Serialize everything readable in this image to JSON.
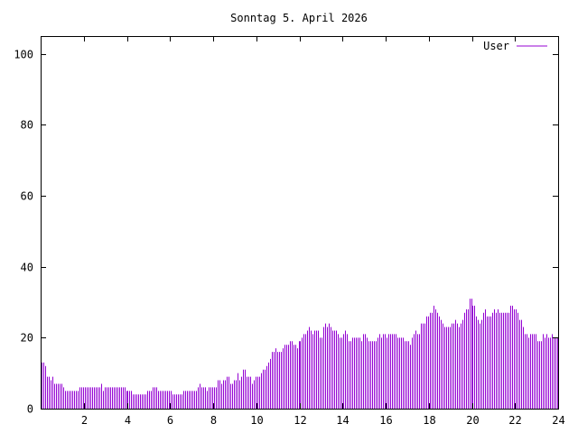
{
  "chart_data": {
    "type": "bar",
    "style": "impulses",
    "title": "Sonntag 5. April 2026",
    "xlabel": "",
    "ylabel": "",
    "xlim": [
      0,
      24
    ],
    "ylim": [
      0,
      105
    ],
    "x_interval_minutes": 5,
    "x_ticks": [
      2,
      4,
      6,
      8,
      10,
      12,
      14,
      16,
      18,
      20,
      22,
      24
    ],
    "y_ticks": [
      0,
      20,
      40,
      60,
      80,
      100
    ],
    "grid": false,
    "legend_position": "top-right",
    "series": [
      {
        "name": "User",
        "color": "#9400d3",
        "values": [
          13,
          13,
          12,
          9,
          9,
          8,
          9,
          7,
          7,
          7,
          7,
          7,
          6,
          5,
          5,
          5,
          5,
          5,
          5,
          5,
          5,
          6,
          6,
          6,
          6,
          6,
          6,
          6,
          6,
          6,
          6,
          6,
          6,
          7,
          5,
          6,
          6,
          6,
          6,
          6,
          6,
          6,
          6,
          6,
          6,
          6,
          6,
          5,
          5,
          5,
          5,
          4,
          4,
          4,
          4,
          4,
          4,
          4,
          4,
          5,
          5,
          5,
          6,
          6,
          6,
          5,
          5,
          5,
          5,
          5,
          5,
          5,
          5,
          4,
          4,
          4,
          4,
          4,
          4,
          5,
          5,
          5,
          5,
          5,
          5,
          5,
          5,
          6,
          7,
          6,
          6,
          6,
          5,
          6,
          6,
          6,
          6,
          6,
          8,
          8,
          7,
          8,
          8,
          9,
          9,
          7,
          7,
          8,
          8,
          10,
          8,
          9,
          11,
          11,
          9,
          9,
          9,
          7,
          8,
          9,
          9,
          9,
          10,
          11,
          11,
          12,
          13,
          14,
          16,
          16,
          17,
          16,
          16,
          16,
          17,
          18,
          18,
          18,
          19,
          19,
          18,
          18,
          17,
          19,
          19,
          20,
          21,
          21,
          22,
          23,
          22,
          21,
          22,
          22,
          22,
          20,
          20,
          23,
          24,
          23,
          24,
          23,
          22,
          22,
          22,
          21,
          20,
          20,
          21,
          22,
          21,
          19,
          19,
          20,
          20,
          20,
          20,
          20,
          19,
          21,
          21,
          20,
          19,
          19,
          19,
          19,
          19,
          20,
          21,
          20,
          21,
          21,
          20,
          21,
          21,
          21,
          21,
          21,
          20,
          20,
          20,
          20,
          19,
          19,
          19,
          18,
          20,
          21,
          22,
          21,
          21,
          24,
          24,
          24,
          26,
          26,
          27,
          27,
          29,
          28,
          27,
          26,
          25,
          24,
          23,
          23,
          23,
          23,
          24,
          24,
          25,
          24,
          23,
          24,
          25,
          27,
          28,
          28,
          31,
          31,
          29,
          29,
          26,
          25,
          24,
          25,
          27,
          28,
          26,
          26,
          26,
          27,
          28,
          27,
          28,
          27,
          27,
          27,
          27,
          27,
          27,
          29,
          29,
          28,
          28,
          27,
          25,
          25,
          23,
          21,
          21,
          20,
          21,
          21,
          21,
          21,
          19,
          19,
          19,
          21,
          20,
          21,
          20,
          20,
          21,
          20,
          20,
          20
        ]
      }
    ]
  }
}
